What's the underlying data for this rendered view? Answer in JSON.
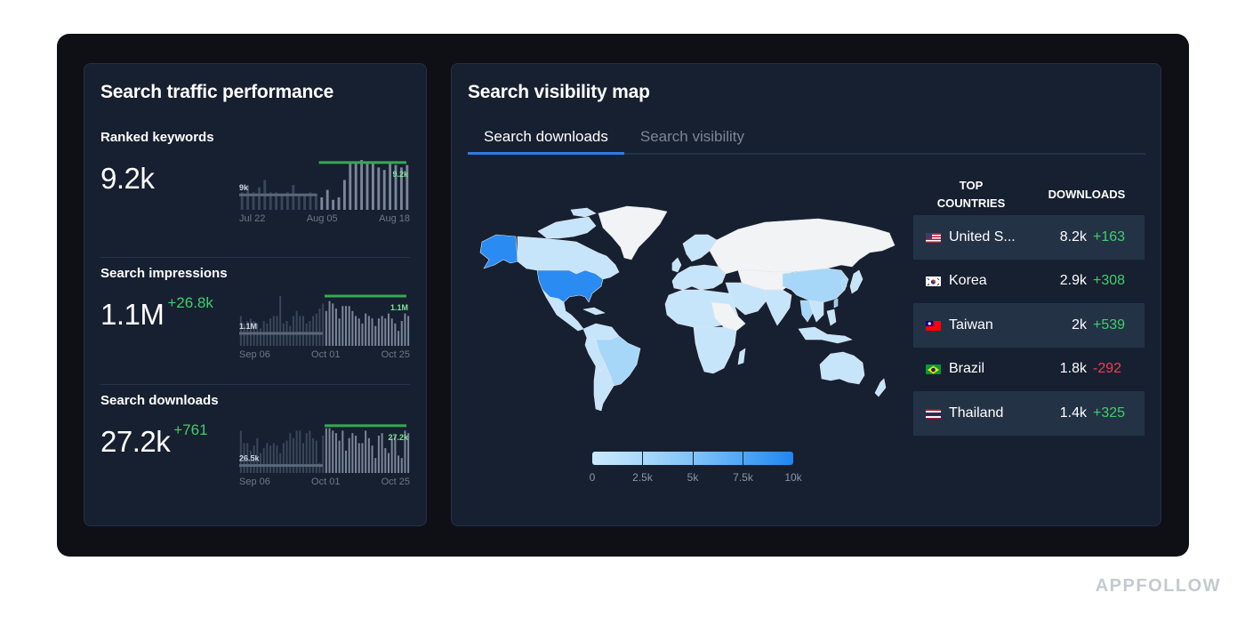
{
  "left_panel": {
    "title": "Search traffic performance",
    "metrics": [
      {
        "label": "Ranked keywords",
        "value": "9.2k",
        "delta": "",
        "baseline_label": "9k",
        "current_label": "9.2k",
        "x_ticks": [
          "Jul 22",
          "Aug 05",
          "Aug 18"
        ],
        "bars": [
          0.35,
          0.5,
          0.35,
          0.45,
          0.6,
          0.35,
          0.35,
          0.3,
          0.35,
          0.5,
          0.3,
          0.3,
          0.35,
          0.3,
          0.25,
          0.4,
          0.2,
          0.25,
          0.6,
          0.95,
          0.95,
          1.0,
          0.95,
          0.95,
          0.85,
          0.8,
          0.95,
          0.9,
          0.85,
          0.9
        ],
        "baseline_level": 0.3,
        "current_level": 0.95,
        "split_index": 14
      },
      {
        "label": "Search impressions",
        "value": "1.1M",
        "delta": "+26.8k",
        "baseline_label": "1.1M",
        "current_label": "1.1M",
        "x_ticks": [
          "Sep 06",
          "Oct 01",
          "Oct 25"
        ],
        "bars": [
          0.6,
          0.45,
          0.5,
          0.55,
          0.5,
          0.45,
          0.35,
          0.5,
          0.45,
          0.55,
          0.6,
          0.6,
          1.0,
          0.45,
          0.5,
          0.4,
          0.6,
          0.7,
          0.6,
          0.6,
          0.45,
          0.5,
          0.6,
          0.65,
          0.75,
          0.85,
          0.7,
          0.9,
          0.85,
          0.75,
          0.55,
          0.8,
          0.8,
          0.8,
          0.7,
          0.6,
          0.55,
          0.45,
          0.65,
          0.6,
          0.55,
          0.4,
          0.55,
          0.6,
          0.55,
          0.65,
          0.55,
          0.45,
          0.3,
          0.5,
          0.65,
          0.6
        ],
        "baseline_level": 0.25,
        "current_level": 1.0,
        "split_index": 26
      },
      {
        "label": "Search downloads",
        "value": "27.2k",
        "delta": "+761",
        "baseline_label": "26.5k",
        "current_label": "27.2k",
        "x_ticks": [
          "Sep 06",
          "Oct 01",
          "Oct 25"
        ],
        "bars": [
          0.85,
          0.6,
          0.6,
          0.45,
          0.55,
          0.7,
          0.4,
          0.5,
          0.6,
          0.55,
          0.6,
          0.55,
          0.4,
          0.6,
          0.65,
          0.8,
          0.7,
          0.85,
          0.85,
          0.6,
          0.8,
          0.85,
          0.7,
          0.65,
          0.2,
          0.75,
          0.9,
          0.9,
          0.85,
          0.8,
          0.65,
          0.85,
          0.45,
          0.7,
          0.8,
          0.75,
          0.6,
          0.6,
          0.85,
          0.7,
          0.55,
          0.3,
          0.75,
          0.8,
          0.5,
          0.4,
          0.7,
          0.75,
          0.35,
          0.3,
          0.85,
          0.8
        ],
        "baseline_level": 0.15,
        "current_level": 0.95,
        "split_index": 26
      }
    ]
  },
  "right_panel": {
    "title": "Search visibility map",
    "tabs": [
      {
        "label": "Search downloads",
        "active": true
      },
      {
        "label": "Search visibility",
        "active": false
      }
    ],
    "legend": {
      "ticks": [
        "0",
        "2.5k",
        "5k",
        "7.5k",
        "10k"
      ],
      "colors": [
        "#b9e0fb",
        "#8ecbf8",
        "#5fb2f7",
        "#2d8ef2"
      ]
    },
    "table": {
      "headers": {
        "country_line1": "TOP",
        "country_line2": "COUNTRIES",
        "downloads": "DOWNLOADS"
      },
      "rows": [
        {
          "flag": "us-flag",
          "country": "United S...",
          "downloads": "8.2k",
          "delta": "+163",
          "trend": "up"
        },
        {
          "flag": "kr-flag",
          "country": "Korea",
          "downloads": "2.9k",
          "delta": "+308",
          "trend": "up"
        },
        {
          "flag": "tw-flag",
          "country": "Taiwan",
          "downloads": "2k",
          "delta": "+539",
          "trend": "up"
        },
        {
          "flag": "br-flag",
          "country": "Brazil",
          "downloads": "1.8k",
          "delta": "-292",
          "trend": "down"
        },
        {
          "flag": "th-flag",
          "country": "Thailand",
          "downloads": "1.4k",
          "delta": "+325",
          "trend": "up"
        }
      ]
    }
  },
  "colors": {
    "positive": "#3ecf6a",
    "negative": "#ef3f55",
    "accent": "#2f7be5",
    "map_top": "#2a8bf2",
    "map_light": "#bfe3fb",
    "map_none": "#f2f3f5"
  },
  "brand": "APPFOLLOW"
}
